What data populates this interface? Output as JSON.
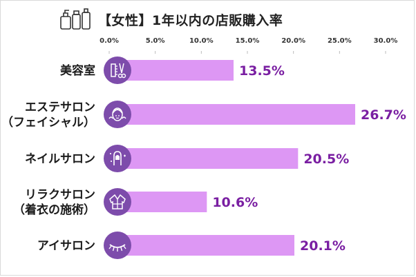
{
  "chart_data": {
    "type": "bar",
    "orientation": "horizontal",
    "title": "【女性】1年以内の店販購入率",
    "xlabel": "",
    "ylabel": "",
    "xlim": [
      0,
      30
    ],
    "ticks": [
      "0.0%",
      "5.0%",
      "10.0%",
      "15.0%",
      "20.0%",
      "25.0%",
      "30.0%"
    ],
    "grid": false,
    "legend": "none",
    "categories": [
      {
        "lines": [
          "美容室"
        ],
        "icon": "scissors-comb-icon"
      },
      {
        "lines": [
          "エステサロン",
          "（フェイシャル）"
        ],
        "icon": "face-mask-icon"
      },
      {
        "lines": [
          "ネイルサロン"
        ],
        "icon": "nail-icon"
      },
      {
        "lines": [
          "リラクサロン",
          "（着衣の施術）"
        ],
        "icon": "robe-icon"
      },
      {
        "lines": [
          "アイサロン"
        ],
        "icon": "eyelash-icon"
      }
    ],
    "values": [
      13.5,
      26.7,
      20.5,
      10.6,
      20.1
    ],
    "value_labels": [
      "13.5%",
      "26.7%",
      "20.5%",
      "10.6%",
      "20.1%"
    ],
    "colors": {
      "bar": "#dd97f4",
      "icon_circle": "#7d4cab",
      "value_text": "#7a1fa2",
      "tick": "#bbbbbb"
    }
  },
  "header_icons": [
    "bottles-icon"
  ]
}
